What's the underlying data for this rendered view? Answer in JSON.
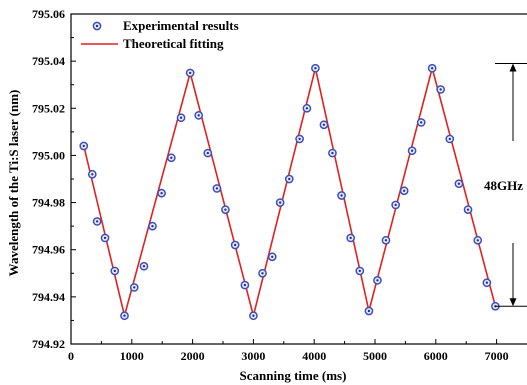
{
  "chart_data": {
    "type": "scatter",
    "xlabel": "Scanning time (ms)",
    "ylabel": "Wavelength of the Ti:S laser (nm)",
    "xlim": [
      0,
      7500
    ],
    "ylim": [
      794.92,
      795.06
    ],
    "x_ticks": [
      0,
      1000,
      2000,
      3000,
      4000,
      5000,
      6000,
      7000
    ],
    "y_ticks": [
      794.92,
      794.94,
      794.96,
      794.98,
      795.0,
      795.02,
      795.04,
      795.06
    ],
    "x_tick_labels": [
      "0",
      "1000",
      "2000",
      "3000",
      "4000",
      "5000",
      "6000",
      "7000"
    ],
    "y_tick_labels": [
      "794.92",
      "794.94",
      "794.96",
      "794.98",
      "795.00",
      "795.02",
      "795.04",
      "795.06"
    ],
    "legend_position": "top-left",
    "series": [
      {
        "name": "Experimental results",
        "kind": "markers",
        "color": "#3a4fbf",
        "x": [
          210,
          350,
          430,
          560,
          720,
          880,
          1040,
          1200,
          1340,
          1490,
          1650,
          1810,
          1960,
          2100,
          2250,
          2400,
          2540,
          2700,
          2860,
          3000,
          3150,
          3310,
          3440,
          3590,
          3760,
          3880,
          4020,
          4160,
          4300,
          4450,
          4600,
          4750,
          4900,
          5040,
          5180,
          5340,
          5480,
          5610,
          5760,
          5940,
          6080,
          6230,
          6380,
          6530,
          6690,
          6840,
          6980
        ],
        "y": [
          795.004,
          794.992,
          794.972,
          794.965,
          794.951,
          794.932,
          794.944,
          794.953,
          794.97,
          794.984,
          794.999,
          795.016,
          795.035,
          795.017,
          795.001,
          794.986,
          794.977,
          794.962,
          794.945,
          794.932,
          794.95,
          794.957,
          794.98,
          794.99,
          795.007,
          795.02,
          795.037,
          795.013,
          795.001,
          794.983,
          794.965,
          794.951,
          794.934,
          794.947,
          794.964,
          794.979,
          794.985,
          795.002,
          795.014,
          795.037,
          795.028,
          795.007,
          794.988,
          794.977,
          794.964,
          794.946,
          794.936
        ]
      },
      {
        "name": "Theoretical fitting",
        "kind": "line",
        "color": "#e0221f",
        "x": [
          210,
          880,
          1960,
          3000,
          4020,
          4900,
          5940,
          6980
        ],
        "y": [
          795.004,
          794.932,
          795.035,
          794.932,
          795.037,
          794.934,
          795.037,
          794.936
        ]
      }
    ],
    "annotation": {
      "label": "48GHz",
      "y_top": 795.039,
      "y_bottom": 794.936
    }
  }
}
